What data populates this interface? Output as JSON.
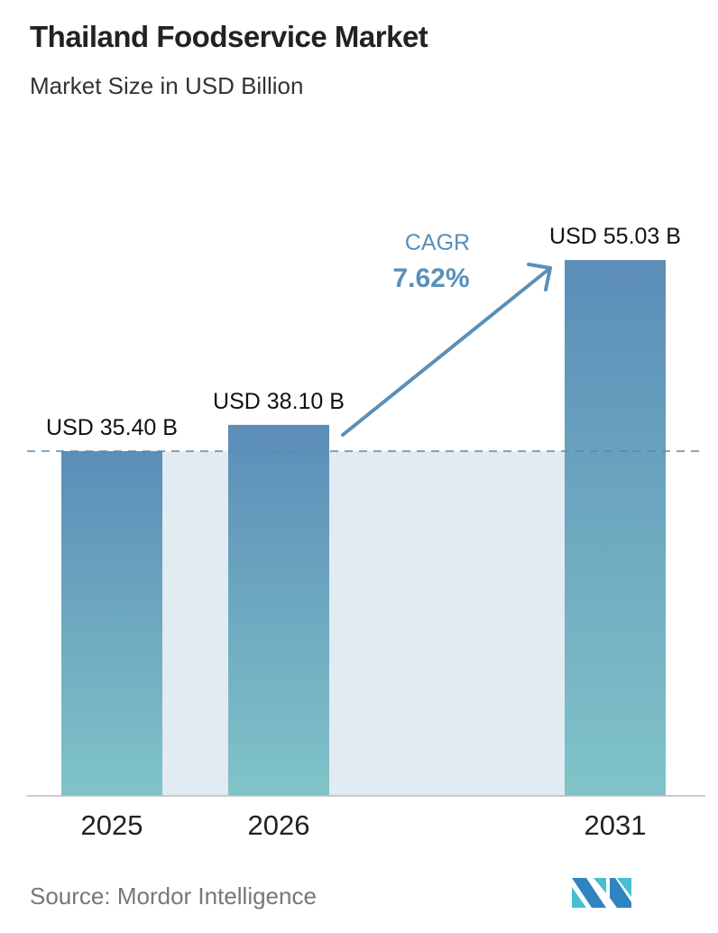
{
  "title": "Thailand Foodservice Market",
  "subtitle": "Market Size in USD Billion",
  "source": "Source:  Mordor Intelligence",
  "logo_text": "MI",
  "colors": {
    "bar_top": "#5b8db8",
    "bar_bottom": "#80c4c8",
    "band": "#e2eaf2",
    "cagr": "#5a8fb8",
    "dash": "#5a88b0"
  },
  "cagr": {
    "label": "CAGR",
    "value": "7.62%"
  },
  "chart_data": {
    "type": "bar",
    "categories": [
      "2025",
      "2026",
      "2031"
    ],
    "values": [
      35.4,
      38.1,
      55.03
    ],
    "data_labels": [
      "USD 35.40 B",
      "USD 38.10 B",
      "USD 55.03 B"
    ],
    "title": "Thailand Foodservice Market",
    "subtitle": "Market Size in USD Billion",
    "ylim": [
      0,
      55.03
    ],
    "grid": false
  }
}
